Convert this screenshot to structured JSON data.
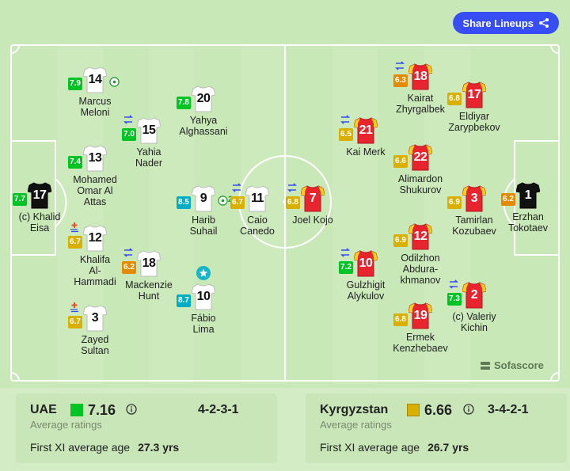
{
  "header": {
    "share_label": "Share Lineups"
  },
  "colors": {
    "green_rating": "#00c424",
    "yellow_rating": "#d9af00",
    "orange_rating": "#e48a00",
    "teal_rating": "#00adc4",
    "uae_kit": "#ffffff",
    "kgz_kit": "#e8242e",
    "kgz_trim": "#f4d316",
    "gk_kit": "#111111",
    "accent": "#374df5"
  },
  "home": {
    "players": [
      {
        "number": "17",
        "name": [
          "(c) Khalid",
          "Eisa"
        ],
        "rating": "7.7",
        "rating_color": "green",
        "gk": true,
        "sub": false,
        "goal": false,
        "star": false
      },
      {
        "number": "14",
        "name": [
          "Marcus",
          "Meloni"
        ],
        "rating": "7.9",
        "rating_color": "green",
        "sub": false,
        "goal": true,
        "star": false
      },
      {
        "number": "13",
        "name": [
          "Mohamed",
          "Omar Al",
          "Attas"
        ],
        "rating": "7.4",
        "rating_color": "green",
        "sub": false,
        "goal": false,
        "star": false
      },
      {
        "number": "12",
        "name": [
          "Khalifa",
          "Al-",
          "Hammadi"
        ],
        "rating": "6.7",
        "rating_color": "yellow",
        "sub": false,
        "injury": true,
        "goal": false,
        "star": false
      },
      {
        "number": "3",
        "name": [
          "Zayed",
          "Sultan"
        ],
        "rating": "6.7",
        "rating_color": "yellow",
        "sub": false,
        "injury": true,
        "goal": false,
        "star": false
      },
      {
        "number": "15",
        "name": [
          "Yahia",
          "Nader"
        ],
        "rating": "7.0",
        "rating_color": "green",
        "sub": true,
        "goal": false,
        "star": false
      },
      {
        "number": "18",
        "name": [
          "Mackenzie",
          "Hunt"
        ],
        "rating": "6.2",
        "rating_color": "orange",
        "sub": true,
        "goal": false,
        "star": false
      },
      {
        "number": "20",
        "name": [
          "Yahya",
          "Alghassani"
        ],
        "rating": "7.8",
        "rating_color": "green",
        "sub": false,
        "goal": false,
        "star": false
      },
      {
        "number": "9",
        "name": [
          "Harib",
          "Suhail"
        ],
        "rating": "8.5",
        "rating_color": "teal",
        "sub": false,
        "goal": true,
        "goal_count": "2",
        "star": false
      },
      {
        "number": "10",
        "name": [
          "Fábio",
          "Lima"
        ],
        "rating": "8.7",
        "rating_color": "teal",
        "sub": false,
        "goal": false,
        "star": true
      },
      {
        "number": "11",
        "name": [
          "Caio",
          "Canedo"
        ],
        "rating": "6.7",
        "rating_color": "yellow",
        "sub": true,
        "goal": false,
        "star": false
      }
    ]
  },
  "away": {
    "players": [
      {
        "number": "7",
        "name": [
          "Joel Kojo"
        ],
        "rating": "6.8",
        "rating_color": "yellow",
        "sub": true
      },
      {
        "number": "21",
        "name": [
          "Kai Merk"
        ],
        "rating": "6.5",
        "rating_color": "yellow",
        "sub": true
      },
      {
        "number": "22",
        "name": [
          "Alimardon",
          "Shukurov"
        ],
        "rating": "6.6",
        "rating_color": "yellow",
        "sub": false
      },
      {
        "number": "12",
        "name": [
          "Odilzhon",
          "Abdura-",
          "khmanov"
        ],
        "rating": "6.9",
        "rating_color": "yellow",
        "sub": false
      },
      {
        "number": "10",
        "name": [
          "Gulzhigit",
          "Alykulov"
        ],
        "rating": "7.2",
        "rating_color": "green",
        "sub": true
      },
      {
        "number": "19",
        "name": [
          "Ermek",
          "Kenzhebaev"
        ],
        "rating": "6.8",
        "rating_color": "yellow",
        "sub": false
      },
      {
        "number": "18",
        "name": [
          "Kairat",
          "Zhyrgalbek"
        ],
        "rating": "6.3",
        "rating_color": "orange",
        "sub": true
      },
      {
        "number": "17",
        "name": [
          "Eldiyar",
          "Zarypbekov"
        ],
        "rating": "6.8",
        "rating_color": "yellow",
        "sub": false
      },
      {
        "number": "3",
        "name": [
          "Tamirlan",
          "Kozubaev"
        ],
        "rating": "6.9",
        "rating_color": "yellow",
        "sub": false
      },
      {
        "number": "2",
        "name": [
          "(c) Valeriy",
          "Kichin"
        ],
        "rating": "7.3",
        "rating_color": "green",
        "sub": true
      },
      {
        "number": "1",
        "name": [
          "Erzhan",
          "Tokotaev"
        ],
        "rating": "6.2",
        "rating_color": "orange",
        "gk": true,
        "sub": false
      }
    ]
  },
  "brand_label": "Sofascore",
  "summary": {
    "home": {
      "team": "UAE",
      "rating": "7.16",
      "rating_color": "#00c424",
      "formation": "4-2-3-1",
      "avg_label": "Average ratings",
      "age_label": "First XI average age",
      "age_value": "27.3 yrs"
    },
    "away": {
      "team": "Kyrgyzstan",
      "rating": "6.66",
      "rating_color": "#d9af00",
      "formation": "3-4-2-1",
      "avg_label": "Average ratings",
      "age_label": "First XI average age",
      "age_value": "26.7 yrs"
    }
  }
}
